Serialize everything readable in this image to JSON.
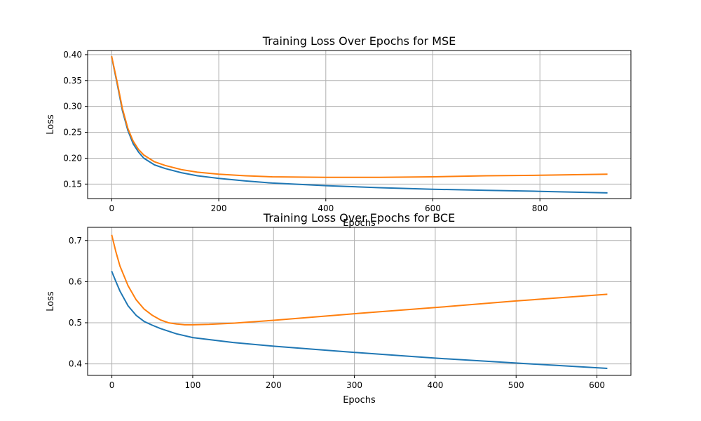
{
  "chart_data": [
    {
      "type": "line",
      "title": "Training Loss Over Epochs for MSE",
      "xlabel": "Epochs",
      "ylabel": "Loss",
      "xlim": [
        -45,
        970
      ],
      "ylim": [
        0.122,
        0.408
      ],
      "xticks": [
        0,
        200,
        400,
        600,
        800
      ],
      "xtick_labels": [
        "0",
        "200",
        "400",
        "600",
        "800"
      ],
      "yticks": [
        0.15,
        0.2,
        0.25,
        0.3,
        0.35,
        0.4
      ],
      "ytick_labels": [
        "0.15",
        "0.20",
        "0.25",
        "0.30",
        "0.35",
        "0.40"
      ],
      "grid": true,
      "series": [
        {
          "color": "#1f77b4",
          "x": [
            0,
            10,
            20,
            30,
            40,
            50,
            60,
            80,
            100,
            130,
            160,
            200,
            250,
            300,
            400,
            500,
            600,
            700,
            800,
            925
          ],
          "y": [
            0.395,
            0.345,
            0.292,
            0.254,
            0.228,
            0.212,
            0.2,
            0.187,
            0.18,
            0.172,
            0.166,
            0.161,
            0.156,
            0.152,
            0.147,
            0.143,
            0.14,
            0.138,
            0.136,
            0.133
          ]
        },
        {
          "color": "#ff7f0e",
          "x": [
            0,
            10,
            20,
            30,
            40,
            50,
            60,
            80,
            100,
            130,
            160,
            200,
            250,
            300,
            400,
            500,
            600,
            700,
            800,
            925
          ],
          "y": [
            0.396,
            0.348,
            0.296,
            0.258,
            0.233,
            0.217,
            0.206,
            0.193,
            0.186,
            0.178,
            0.173,
            0.169,
            0.166,
            0.164,
            0.163,
            0.163,
            0.164,
            0.166,
            0.167,
            0.169
          ]
        }
      ]
    },
    {
      "type": "line",
      "title": "Training Loss Over Epochs for BCE",
      "xlabel": "Epochs",
      "ylabel": "Loss",
      "xlim": [
        -30,
        642
      ],
      "ylim": [
        0.372,
        0.732
      ],
      "xticks": [
        0,
        100,
        200,
        300,
        400,
        500,
        600
      ],
      "xtick_labels": [
        "0",
        "100",
        "200",
        "300",
        "400",
        "500",
        "600"
      ],
      "yticks": [
        0.4,
        0.5,
        0.6,
        0.7
      ],
      "ytick_labels": [
        "0.4",
        "0.5",
        "0.6",
        "0.7"
      ],
      "grid": true,
      "series": [
        {
          "color": "#1f77b4",
          "x": [
            0,
            5,
            10,
            20,
            30,
            40,
            50,
            60,
            80,
            100,
            150,
            200,
            300,
            400,
            500,
            612
          ],
          "y": [
            0.624,
            0.6,
            0.577,
            0.541,
            0.518,
            0.503,
            0.494,
            0.486,
            0.473,
            0.464,
            0.452,
            0.443,
            0.428,
            0.414,
            0.402,
            0.389
          ]
        },
        {
          "color": "#ff7f0e",
          "x": [
            0,
            5,
            10,
            20,
            30,
            40,
            50,
            60,
            70,
            80,
            90,
            100,
            120,
            150,
            200,
            300,
            400,
            500,
            612
          ],
          "y": [
            0.712,
            0.672,
            0.638,
            0.59,
            0.556,
            0.533,
            0.518,
            0.507,
            0.5,
            0.497,
            0.495,
            0.495,
            0.496,
            0.499,
            0.506,
            0.522,
            0.537,
            0.553,
            0.569
          ]
        }
      ]
    }
  ]
}
